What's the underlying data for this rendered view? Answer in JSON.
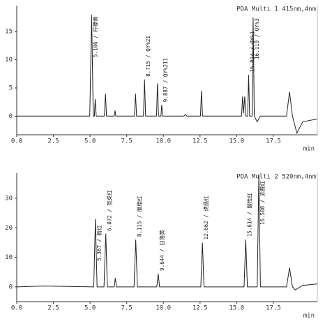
{
  "chart_data": [
    {
      "type": "line",
      "title": "PDA Multi 1 415nm,4nm",
      "xlabel": "min",
      "x": [
        0,
        1.8,
        4.98,
        5.106,
        5.22,
        5.3,
        5.35,
        5.42,
        5.98,
        6.05,
        6.12,
        6.65,
        6.7,
        6.76,
        8.03,
        8.1,
        8.17,
        8.64,
        8.715,
        8.79,
        9.53,
        9.6,
        9.67,
        9.83,
        9.887,
        9.95,
        11.4,
        11.5,
        11.6,
        12.53,
        12.6,
        12.67,
        15.33,
        15.4,
        15.47,
        15.55,
        15.62,
        15.75,
        15.814,
        15.88,
        16.05,
        16.119,
        16.2,
        16.4,
        16.6,
        18.4,
        18.6,
        18.8,
        19.1,
        19.5,
        20.5
      ],
      "values": [
        0,
        0,
        0,
        18,
        0,
        0,
        3,
        0,
        0,
        4,
        0,
        0,
        1,
        0,
        0,
        4,
        0,
        0,
        6.5,
        0,
        0,
        5.8,
        0,
        0,
        2,
        0,
        0,
        0.3,
        0,
        0,
        4.5,
        0,
        0,
        3.5,
        0.5,
        3.5,
        0,
        0,
        7.3,
        0,
        0,
        17.5,
        0,
        -1,
        0,
        0,
        4.3,
        0,
        -3,
        -1,
        -0.5
      ],
      "color": "#222222",
      "xlim": [
        0,
        20.5
      ],
      "ylim": [
        -3.3,
        19.6
      ],
      "xticks": [
        {
          "value": 0,
          "label": "0.0"
        },
        2.5,
        {
          "value": 5,
          "label": "5.0"
        },
        7.5,
        {
          "value": 10,
          "label": "10.0"
        },
        12.5,
        {
          "value": 15,
          "label": "15.0"
        },
        17.5
      ],
      "yticks": [
        0,
        5,
        10,
        15
      ],
      "annotations": [
        {
          "x": 5.106,
          "y": 18,
          "text": "5.106 / 柠檬黄"
        },
        {
          "x": 8.715,
          "y": 6.5,
          "text": "8.715 / QY%21"
        },
        {
          "x": 9.887,
          "y": 2,
          "text": "9.887 / QY%211"
        },
        {
          "x": 15.814,
          "y": 7.3,
          "text": "15.814 / QY%1"
        },
        {
          "x": 16.119,
          "y": 17.5,
          "text": "16.119 / QY%3"
        }
      ]
    },
    {
      "type": "line",
      "title": "PDA Multi 2 520nm,4nm",
      "xlabel": "min",
      "x": [
        0,
        1.8,
        5.25,
        5.367,
        5.48,
        5.95,
        6.072,
        6.18,
        6.65,
        6.72,
        6.8,
        8.0,
        8.115,
        8.23,
        9.55,
        9.644,
        9.74,
        12.55,
        12.662,
        12.77,
        15.5,
        15.614,
        15.73,
        16.4,
        16.508,
        16.62,
        18.4,
        18.6,
        18.8,
        19.0,
        19.5,
        20.5
      ],
      "values": [
        0,
        0.3,
        0,
        23,
        0,
        0,
        18,
        0,
        0,
        3,
        0,
        0,
        16,
        0,
        0,
        4.5,
        0,
        0,
        15,
        0,
        0,
        16,
        0,
        0,
        38,
        0,
        0,
        6.5,
        0,
        -1,
        0.5,
        1
      ],
      "color": "#222222",
      "xlim": [
        0,
        20.5
      ],
      "ylim": [
        -5,
        38.5
      ],
      "xticks": [
        {
          "value": 0,
          "label": "0.0"
        },
        2.5,
        {
          "value": 5,
          "label": "5.0"
        },
        7.5,
        {
          "value": 10,
          "label": "10.0"
        },
        12.5,
        {
          "value": 15,
          "label": "15.0"
        },
        17.5
      ],
      "yticks": [
        0,
        10,
        20,
        30
      ],
      "annotations": [
        {
          "x": 5.367,
          "y": 23,
          "text": "5.367 / 新红"
        },
        {
          "x": 6.072,
          "y": 18,
          "text": "6.072 / 苋菜红"
        },
        {
          "x": 8.115,
          "y": 16,
          "text": "8.115 / 胭脂红"
        },
        {
          "x": 9.644,
          "y": 4.5,
          "text": "9.644 / 日落黄"
        },
        {
          "x": 12.662,
          "y": 15,
          "text": "12.662 / 诱惑红"
        },
        {
          "x": 15.614,
          "y": 16,
          "text": "15.614 / 酸性红"
        },
        {
          "x": 16.508,
          "y": 38,
          "text": "16.508 / 赤藓红"
        }
      ]
    }
  ]
}
